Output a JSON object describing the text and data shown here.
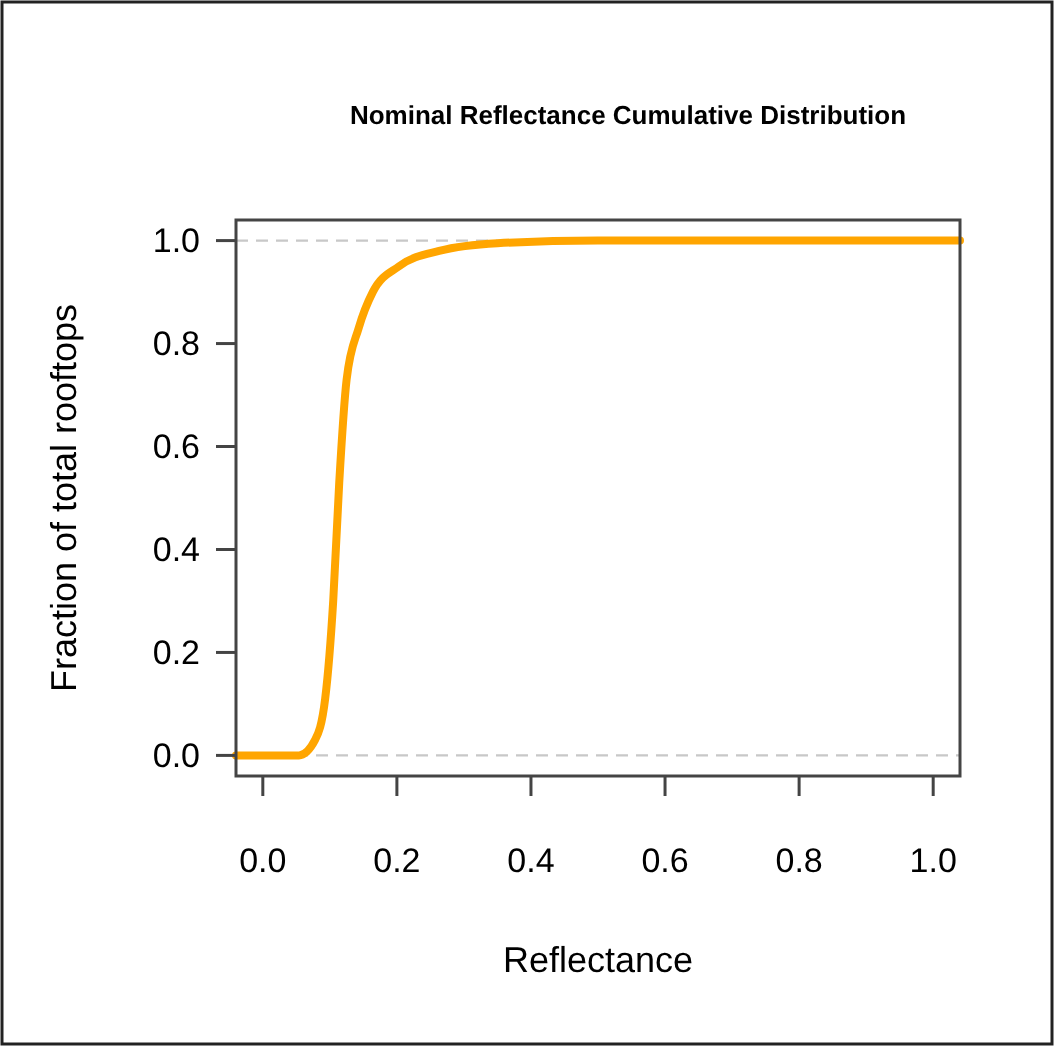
{
  "chart_data": {
    "type": "line",
    "title": "Nominal Reflectance Cumulative Distribution",
    "xlabel": "Reflectance",
    "ylabel": "Fraction of total rooftops",
    "x": [
      -0.04,
      0.0,
      0.054,
      0.078,
      0.093,
      0.105,
      0.114,
      0.125,
      0.143,
      0.164,
      0.203,
      0.263,
      0.35,
      0.5,
      0.7,
      1.04
    ],
    "series": [
      {
        "color": "#ffa500",
        "values": [
          0,
          0,
          0,
          0.03,
          0.11,
          0.3,
          0.53,
          0.73,
          0.83,
          0.9,
          0.95,
          0.98,
          0.995,
          1,
          1,
          1
        ]
      }
    ],
    "xlim": [
      -0.04,
      1.04
    ],
    "ylim": [
      -0.04,
      1.04
    ],
    "xticks": [
      {
        "value": 0,
        "label": "0.0"
      },
      0.2,
      0.4,
      0.6,
      0.8,
      {
        "value": 1,
        "label": "1.0"
      }
    ],
    "yticks": [
      {
        "value": 0,
        "label": "0.0"
      },
      0.2,
      0.4,
      0.6,
      0.8,
      {
        "value": 1,
        "label": "1.0"
      }
    ],
    "ref_lines": [
      {
        "axis": "y",
        "value": 0,
        "color": "#c8c8c8",
        "line_style": "dashed"
      },
      {
        "axis": "y",
        "value": 1,
        "color": "#c8c8c8",
        "line_style": "dashed"
      }
    ],
    "grid": false,
    "line_style": "solid"
  }
}
